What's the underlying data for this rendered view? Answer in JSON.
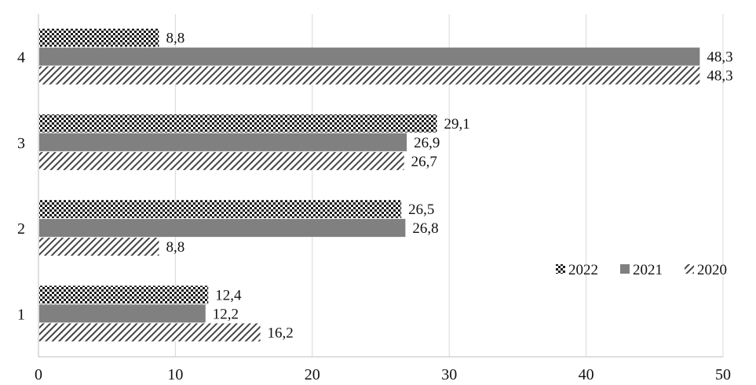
{
  "chart_data": {
    "type": "bar",
    "orientation": "horizontal",
    "categories": [
      "1",
      "2",
      "3",
      "4"
    ],
    "series": [
      {
        "name": "2022",
        "values": [
          12.4,
          26.5,
          29.1,
          8.8
        ],
        "labels": [
          "12,4",
          "26,5",
          "29,1",
          "8,8"
        ],
        "pattern": "checker",
        "color": "#1a1a1a"
      },
      {
        "name": "2021",
        "values": [
          12.2,
          26.8,
          26.9,
          48.3
        ],
        "labels": [
          "12,2",
          "26,8",
          "26,9",
          "48,3"
        ],
        "pattern": "solid",
        "color": "#808080"
      },
      {
        "name": "2020",
        "values": [
          16.2,
          8.8,
          26.7,
          48.3
        ],
        "labels": [
          "16,2",
          "8,8",
          "26,7",
          "48,3"
        ],
        "pattern": "diagonal",
        "color": "#444444"
      }
    ],
    "xlim": [
      0,
      50
    ],
    "xticks": [
      "0",
      "10",
      "20",
      "30",
      "40",
      "50"
    ],
    "grid": "vertical",
    "legend_position": "right",
    "title": "",
    "xlabel": "",
    "ylabel": ""
  }
}
